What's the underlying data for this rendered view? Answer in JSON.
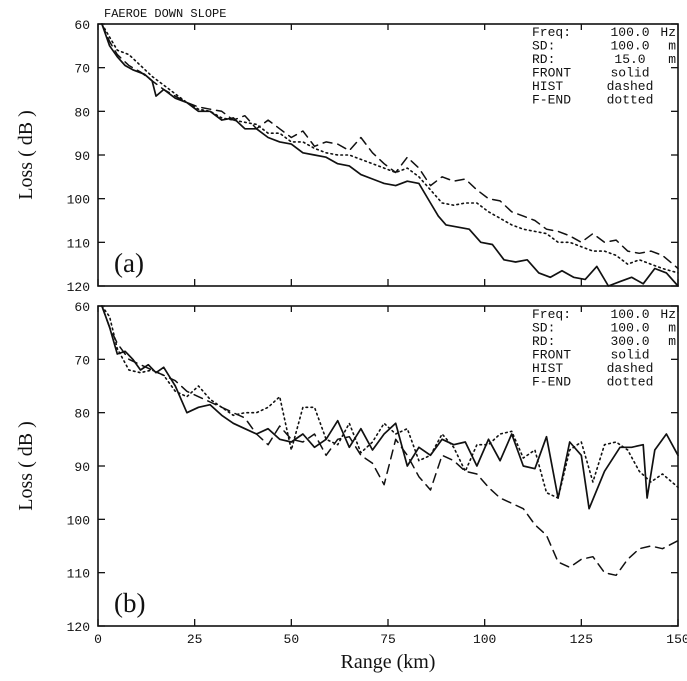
{
  "chart_data": [
    {
      "type": "line",
      "title": "FAEROE DOWN SLOPE",
      "panel_label": "(a)",
      "xlabel": "",
      "ylabel": "Loss ( dB )",
      "xlim": [
        0,
        150
      ],
      "ylim": [
        60,
        120
      ],
      "y_inverted": true,
      "grid": false,
      "legend_position": "top-right",
      "yticks": [
        60,
        70,
        80,
        90,
        100,
        110,
        120
      ],
      "info_rows": [
        {
          "label": "Freq:",
          "value": "100.0",
          "unit": "Hz"
        },
        {
          "label": "SD:",
          "value": "100.0",
          "unit": "m"
        },
        {
          "label": "RD:",
          "value": "15.0",
          "unit": "m"
        },
        {
          "label": "FRONT",
          "value": "solid",
          "unit": ""
        },
        {
          "label": "HIST",
          "value": "dashed",
          "unit": ""
        },
        {
          "label": "F-END",
          "value": "dotted",
          "unit": ""
        }
      ],
      "series": [
        {
          "name": "FRONT",
          "style": "solid",
          "x": [
            1,
            3,
            5,
            7,
            9,
            12,
            14,
            15,
            17,
            20,
            23,
            26,
            29,
            32,
            35,
            38,
            41,
            44,
            47,
            50,
            53,
            56,
            59,
            62,
            65,
            68,
            71,
            74,
            77,
            80,
            83,
            86,
            88,
            90,
            93,
            96,
            99,
            102,
            105,
            108,
            111,
            114,
            117,
            120,
            123,
            126,
            129,
            132,
            135,
            138,
            141,
            144,
            147,
            150
          ],
          "values": [
            60,
            65,
            67.5,
            69.5,
            70.5,
            71.5,
            73,
            76.5,
            75,
            77,
            78,
            80,
            80,
            82,
            81.5,
            84,
            84,
            86,
            87,
            87.5,
            89.5,
            90,
            90.5,
            92,
            92.5,
            94.5,
            95.5,
            96.5,
            97,
            96,
            96.5,
            101,
            104,
            106,
            106.5,
            107,
            110,
            110.5,
            114,
            114.5,
            114,
            117,
            118,
            116.5,
            118,
            118.5,
            115.5,
            120,
            119,
            118,
            119.5,
            116,
            117,
            120
          ]
        },
        {
          "name": "HIST",
          "style": "dashed",
          "x": [
            1,
            3,
            5,
            8,
            11,
            14,
            17,
            20,
            23,
            26,
            29,
            32,
            35,
            38,
            41,
            44,
            47,
            50,
            53,
            56,
            59,
            62,
            65,
            68,
            71,
            74,
            77,
            80,
            83,
            86,
            89,
            92,
            95,
            98,
            101,
            104,
            107,
            110,
            113,
            116,
            119,
            122,
            125,
            128,
            131,
            134,
            137,
            140,
            143,
            146,
            150
          ],
          "values": [
            60,
            64,
            67,
            69.5,
            71,
            73,
            75,
            76.5,
            78,
            79,
            79.5,
            80,
            82,
            81,
            84,
            82,
            84,
            86,
            84.5,
            88,
            87,
            87.5,
            89,
            86,
            89.5,
            92,
            94,
            90.5,
            93,
            97,
            95,
            96,
            95.5,
            98,
            100,
            100.5,
            103,
            104,
            105,
            107,
            107.5,
            108.5,
            110,
            108,
            110,
            109.5,
            112,
            112.5,
            112,
            113,
            116
          ]
        },
        {
          "name": "F-END",
          "style": "dotted",
          "x": [
            1,
            3,
            5,
            8,
            11,
            14,
            17,
            20,
            23,
            26,
            29,
            32,
            35,
            38,
            41,
            44,
            47,
            50,
            53,
            56,
            59,
            62,
            65,
            68,
            71,
            74,
            77,
            80,
            83,
            86,
            89,
            92,
            95,
            98,
            101,
            104,
            107,
            110,
            113,
            116,
            119,
            122,
            125,
            128,
            131,
            134,
            137,
            140,
            143,
            146,
            150
          ],
          "values": [
            60,
            63,
            66,
            67,
            69.5,
            72,
            74,
            76,
            78,
            79.5,
            80,
            81.5,
            82,
            82.5,
            83,
            85,
            85,
            87,
            87,
            88.5,
            89.5,
            90,
            90,
            91,
            92,
            93,
            94,
            93,
            95,
            98,
            101,
            101.5,
            101,
            101,
            103,
            104.5,
            106,
            107,
            107.5,
            108,
            110,
            110,
            111,
            112,
            112,
            113,
            115,
            114,
            115,
            116,
            117
          ]
        }
      ]
    },
    {
      "type": "line",
      "title": "",
      "panel_label": "(b)",
      "xlabel": "Range (km)",
      "ylabel": "Loss ( dB )",
      "xlim": [
        0,
        150
      ],
      "ylim": [
        60,
        120
      ],
      "y_inverted": true,
      "grid": false,
      "legend_position": "top-right",
      "xticks": [
        0,
        25,
        50,
        75,
        100,
        125,
        150
      ],
      "yticks": [
        60,
        70,
        80,
        90,
        100,
        110,
        120
      ],
      "info_rows": [
        {
          "label": "Freq:",
          "value": "100.0",
          "unit": "Hz"
        },
        {
          "label": "SD:",
          "value": "100.0",
          "unit": "m"
        },
        {
          "label": "RD:",
          "value": "300.0",
          "unit": "m"
        },
        {
          "label": "FRONT",
          "value": "solid",
          "unit": ""
        },
        {
          "label": "HIST",
          "value": "dashed",
          "unit": ""
        },
        {
          "label": "F-END",
          "value": "dotted",
          "unit": ""
        }
      ],
      "series": [
        {
          "name": "FRONT",
          "style": "solid",
          "x": [
            1,
            3,
            5,
            7,
            9,
            11,
            13,
            15,
            17,
            20,
            23,
            26,
            29,
            32,
            35,
            38,
            41,
            44,
            47,
            50,
            53,
            56,
            59,
            62,
            65,
            68,
            71,
            74,
            77,
            80,
            83,
            86,
            89,
            92,
            95,
            98,
            101,
            104,
            107,
            110,
            113,
            116,
            119,
            122,
            125,
            127,
            131,
            135,
            138,
            141,
            142,
            144,
            147,
            150
          ],
          "values": [
            60,
            64,
            69,
            68.5,
            70,
            72,
            71,
            72.5,
            71.5,
            75,
            80,
            79,
            78.5,
            80.5,
            82,
            83,
            84,
            83,
            85,
            85.5,
            84,
            86.5,
            85,
            81.5,
            86.5,
            83,
            87,
            84,
            82,
            90,
            86.5,
            88,
            85,
            86,
            85.5,
            90,
            85,
            89,
            84,
            90,
            90.5,
            84.5,
            96,
            85.5,
            88,
            98,
            91,
            86.5,
            86.5,
            86,
            96,
            87,
            84,
            88
          ]
        },
        {
          "name": "HIST",
          "style": "dashed",
          "x": [
            1,
            3,
            5,
            8,
            11,
            14,
            17,
            20,
            23,
            26,
            29,
            32,
            35,
            38,
            41,
            44,
            47,
            50,
            53,
            56,
            59,
            62,
            65,
            68,
            71,
            74,
            77,
            80,
            83,
            86,
            89,
            92,
            95,
            98,
            101,
            104,
            107,
            110,
            113,
            116,
            119,
            122,
            125,
            128,
            131,
            134,
            137,
            140,
            143,
            146,
            150
          ],
          "values": [
            60,
            64,
            67,
            70,
            71,
            72,
            73,
            74,
            76,
            77,
            78,
            79,
            80,
            81,
            84,
            86,
            82.5,
            85,
            85.5,
            84,
            88,
            85,
            84.5,
            88,
            89.5,
            93.5,
            85,
            88,
            92,
            94.5,
            88,
            89,
            91,
            91.5,
            94,
            96,
            97,
            98,
            101,
            103,
            108,
            109,
            107.5,
            107,
            110,
            110.5,
            107.5,
            105.5,
            105,
            105.5,
            104
          ]
        },
        {
          "name": "F-END",
          "style": "dotted",
          "x": [
            1,
            3,
            5,
            8,
            11,
            14,
            17,
            20,
            23,
            26,
            29,
            32,
            35,
            38,
            41,
            44,
            47,
            50,
            53,
            56,
            59,
            62,
            65,
            68,
            71,
            74,
            77,
            80,
            83,
            86,
            89,
            92,
            95,
            98,
            101,
            104,
            107,
            110,
            113,
            116,
            119,
            122,
            125,
            128,
            131,
            134,
            137,
            140,
            143,
            146,
            150
          ],
          "values": [
            60,
            62,
            68,
            72,
            72.5,
            72,
            73,
            76,
            77,
            75,
            77.5,
            79,
            80.5,
            80,
            80,
            79,
            77,
            87,
            79,
            79,
            85,
            86,
            82,
            87.5,
            85.5,
            82,
            84,
            83,
            89,
            88,
            84,
            86.5,
            91,
            86,
            86,
            84,
            83.5,
            88.5,
            87,
            95,
            96,
            87,
            85.5,
            93,
            86,
            85.5,
            87,
            91,
            93,
            91.5,
            94
          ]
        }
      ]
    }
  ]
}
